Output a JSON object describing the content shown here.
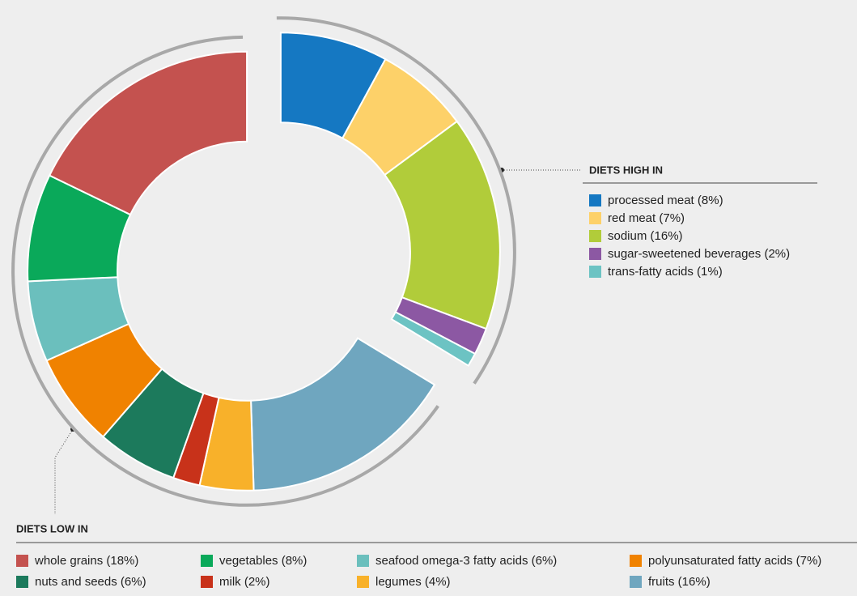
{
  "chart_data": {
    "type": "donut",
    "groups": [
      {
        "title": "DIETS HIGH IN",
        "categories": [
          "processed meat (8%)",
          "red meat (7%)",
          "sodium (16%)",
          "sugar-sweetened beverages (2%)",
          "trans-fatty acids (1%)"
        ],
        "values": [
          8,
          7,
          16,
          2,
          1
        ],
        "colors": [
          "#1578c2",
          "#fdd169",
          "#b1cc3a",
          "#8c58a3",
          "#6cc3c3"
        ]
      },
      {
        "title": "DIETS LOW IN",
        "categories": [
          "whole grains (18%)",
          "vegetables (8%)",
          "seafood omega-3 fatty acids (6%)",
          "polyunsaturated fatty acids (7%)",
          "nuts and seeds (6%)",
          "milk (2%)",
          "legumes (4%)",
          "fruits (16%)"
        ],
        "values": [
          18,
          8,
          6,
          7,
          6,
          2,
          4,
          16
        ],
        "colors": [
          "#c4524f",
          "#0aa95a",
          "#6bbfbd",
          "#f08200",
          "#1c7a5c",
          "#c8321a",
          "#f8b12a",
          "#6fa6bf"
        ]
      }
    ]
  }
}
